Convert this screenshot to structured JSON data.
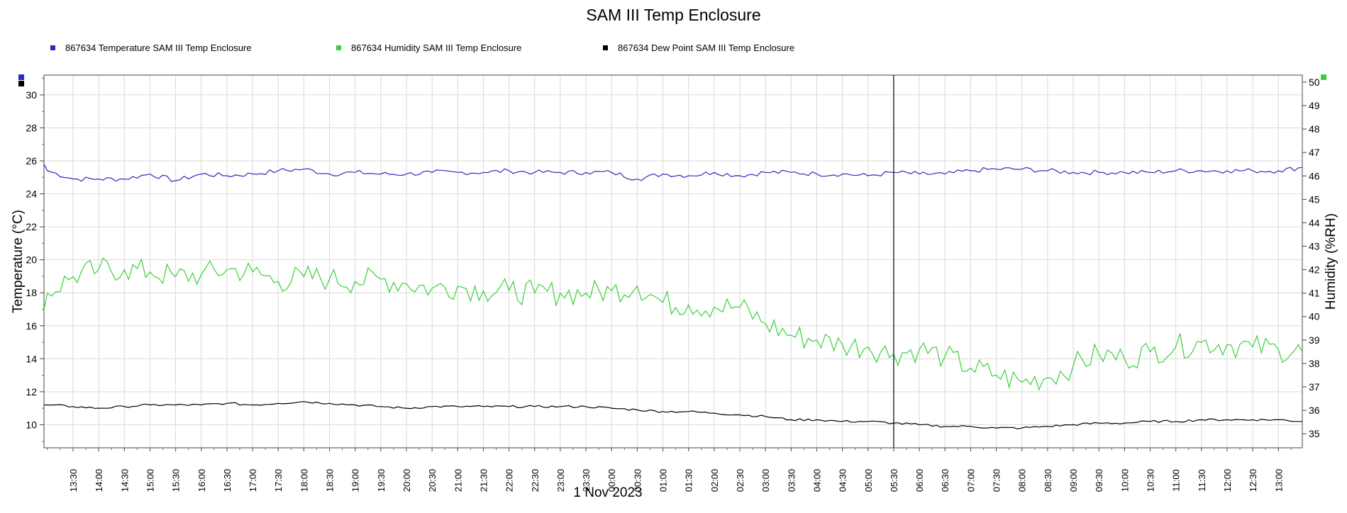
{
  "chart_data": {
    "type": "line",
    "title": "SAM III Temp Enclosure",
    "x_range": [
      "2023-10-31T12:56",
      "2023-11-01T13:28"
    ],
    "x_tick_labels": [
      "13:30",
      "14:00",
      "14:30",
      "15:00",
      "15:30",
      "16:00",
      "16:30",
      "17:00",
      "17:30",
      "18:00",
      "18:30",
      "19:00",
      "19:30",
      "20:00",
      "20:30",
      "21:00",
      "21:30",
      "22:00",
      "22:30",
      "23:00",
      "23:30",
      "00:00",
      "00:30",
      "01:00",
      "01:30",
      "02:00",
      "02:30",
      "03:00",
      "03:30",
      "04:00",
      "04:30",
      "05:00",
      "05:30",
      "06:00",
      "06:30",
      "07:00",
      "07:30",
      "08:00",
      "08:30",
      "09:00",
      "09:30",
      "10:00",
      "10:30",
      "11:00",
      "11:30",
      "12:00",
      "12:30",
      "13:00"
    ],
    "x_date_label": "1 Nov 2023",
    "cursor_time": "05:30",
    "y_left": {
      "label": "Temperature (°C)",
      "range": [
        8.6,
        31.2
      ],
      "ticks": [
        10,
        12,
        14,
        16,
        18,
        20,
        22,
        24,
        26,
        28,
        30
      ]
    },
    "y_right": {
      "label": "Humidity (%RH)",
      "range": [
        34.4,
        50.3
      ],
      "ticks": [
        35,
        36,
        37,
        38,
        39,
        40,
        41,
        42,
        43,
        44,
        45,
        46,
        47,
        48,
        49,
        50
      ]
    },
    "grid": true,
    "legend_position": "top",
    "series": [
      {
        "name": "867634  Temperature SAM III Temp Enclosure",
        "axis": "left",
        "color": "#2b2bbd",
        "points": [
          [
            "12:56",
            25.8
          ],
          [
            "13:00",
            25.4
          ],
          [
            "13:30",
            24.9
          ],
          [
            "14:00",
            24.9
          ],
          [
            "14:30",
            24.9
          ],
          [
            "15:00",
            25.2
          ],
          [
            "15:30",
            24.8
          ],
          [
            "16:00",
            25.2
          ],
          [
            "16:30",
            25.1
          ],
          [
            "17:00",
            25.2
          ],
          [
            "17:30",
            25.4
          ],
          [
            "18:00",
            25.5
          ],
          [
            "18:30",
            25.2
          ],
          [
            "19:00",
            25.3
          ],
          [
            "19:30",
            25.2
          ],
          [
            "20:00",
            25.2
          ],
          [
            "20:30",
            25.3
          ],
          [
            "21:00",
            25.3
          ],
          [
            "21:30",
            25.3
          ],
          [
            "22:00",
            25.4
          ],
          [
            "22:30",
            25.3
          ],
          [
            "23:00",
            25.3
          ],
          [
            "23:30",
            25.3
          ],
          [
            "00:00",
            25.3
          ],
          [
            "00:30",
            24.9
          ],
          [
            "01:00",
            25.2
          ],
          [
            "01:30",
            25.1
          ],
          [
            "02:00",
            25.3
          ],
          [
            "02:30",
            25.1
          ],
          [
            "03:00",
            25.3
          ],
          [
            "03:30",
            25.3
          ],
          [
            "04:00",
            25.2
          ],
          [
            "04:30",
            25.2
          ],
          [
            "05:00",
            25.1
          ],
          [
            "05:30",
            25.3
          ],
          [
            "06:00",
            25.2
          ],
          [
            "06:30",
            25.2
          ],
          [
            "07:00",
            25.4
          ],
          [
            "07:30",
            25.5
          ],
          [
            "08:00",
            25.5
          ],
          [
            "08:30",
            25.4
          ],
          [
            "09:00",
            25.3
          ],
          [
            "09:30",
            25.3
          ],
          [
            "10:00",
            25.3
          ],
          [
            "10:30",
            25.3
          ],
          [
            "11:00",
            25.4
          ],
          [
            "11:30",
            25.4
          ],
          [
            "12:00",
            25.4
          ],
          [
            "12:30",
            25.4
          ],
          [
            "13:00",
            25.4
          ],
          [
            "13:28",
            25.6
          ]
        ]
      },
      {
        "name": "867634  Humidity SAM III Temp Enclosure",
        "axis": "right",
        "color": "#3ccf3c",
        "points": [
          [
            "12:56",
            40.3
          ],
          [
            "13:00",
            41.0
          ],
          [
            "13:30",
            41.7
          ],
          [
            "14:00",
            42.0
          ],
          [
            "14:30",
            42.0
          ],
          [
            "15:00",
            41.9
          ],
          [
            "15:30",
            41.7
          ],
          [
            "16:00",
            41.8
          ],
          [
            "16:30",
            42.0
          ],
          [
            "17:00",
            41.9
          ],
          [
            "17:30",
            41.5
          ],
          [
            "18:00",
            41.7
          ],
          [
            "18:30",
            41.6
          ],
          [
            "19:00",
            41.5
          ],
          [
            "19:30",
            41.6
          ],
          [
            "20:00",
            41.4
          ],
          [
            "20:30",
            41.2
          ],
          [
            "21:00",
            41.3
          ],
          [
            "21:30",
            41.1
          ],
          [
            "22:00",
            41.1
          ],
          [
            "22:30",
            41.0
          ],
          [
            "23:00",
            41.0
          ],
          [
            "23:30",
            41.0
          ],
          [
            "00:00",
            41.1
          ],
          [
            "00:30",
            41.3
          ],
          [
            "01:00",
            40.6
          ],
          [
            "01:30",
            40.5
          ],
          [
            "02:00",
            40.4
          ],
          [
            "02:30",
            40.4
          ],
          [
            "03:00",
            39.7
          ],
          [
            "03:30",
            39.2
          ],
          [
            "04:00",
            39.0
          ],
          [
            "04:30",
            38.8
          ],
          [
            "05:00",
            38.7
          ],
          [
            "05:30",
            38.4
          ],
          [
            "06:00",
            38.6
          ],
          [
            "06:30",
            38.3
          ],
          [
            "07:00",
            37.8
          ],
          [
            "07:30",
            37.5
          ],
          [
            "08:00",
            37.2
          ],
          [
            "08:30",
            37.4
          ],
          [
            "09:00",
            37.9
          ],
          [
            "09:30",
            38.4
          ],
          [
            "10:00",
            38.2
          ],
          [
            "10:30",
            38.5
          ],
          [
            "11:00",
            38.7
          ],
          [
            "11:30",
            38.9
          ],
          [
            "12:00",
            38.8
          ],
          [
            "12:30",
            38.7
          ],
          [
            "13:00",
            38.6
          ],
          [
            "13:28",
            38.5
          ]
        ]
      },
      {
        "name": "867634  Dew Point SAM III Temp Enclosure",
        "axis": "left",
        "color": "#000000",
        "points": [
          [
            "12:56",
            11.2
          ],
          [
            "13:00",
            11.2
          ],
          [
            "13:30",
            11.1
          ],
          [
            "14:00",
            11.0
          ],
          [
            "14:30",
            11.1
          ],
          [
            "15:00",
            11.2
          ],
          [
            "15:30",
            11.2
          ],
          [
            "16:00",
            11.2
          ],
          [
            "16:30",
            11.3
          ],
          [
            "17:00",
            11.2
          ],
          [
            "17:30",
            11.3
          ],
          [
            "18:00",
            11.4
          ],
          [
            "18:30",
            11.3
          ],
          [
            "19:00",
            11.2
          ],
          [
            "19:30",
            11.1
          ],
          [
            "20:00",
            11.0
          ],
          [
            "20:30",
            11.1
          ],
          [
            "21:00",
            11.1
          ],
          [
            "21:30",
            11.1
          ],
          [
            "22:00",
            11.1
          ],
          [
            "22:30",
            11.1
          ],
          [
            "23:00",
            11.1
          ],
          [
            "23:30",
            11.1
          ],
          [
            "00:00",
            11.0
          ],
          [
            "00:30",
            10.9
          ],
          [
            "01:00",
            10.8
          ],
          [
            "01:30",
            10.8
          ],
          [
            "02:00",
            10.7
          ],
          [
            "02:30",
            10.6
          ],
          [
            "03:00",
            10.5
          ],
          [
            "03:30",
            10.3
          ],
          [
            "04:00",
            10.3
          ],
          [
            "04:30",
            10.2
          ],
          [
            "05:00",
            10.2
          ],
          [
            "05:30",
            10.1
          ],
          [
            "06:00",
            10.0
          ],
          [
            "06:30",
            9.9
          ],
          [
            "07:00",
            9.9
          ],
          [
            "07:30",
            9.8
          ],
          [
            "08:00",
            9.8
          ],
          [
            "08:30",
            9.9
          ],
          [
            "09:00",
            10.0
          ],
          [
            "09:30",
            10.1
          ],
          [
            "10:00",
            10.1
          ],
          [
            "10:30",
            10.2
          ],
          [
            "11:00",
            10.2
          ],
          [
            "11:30",
            10.3
          ],
          [
            "12:00",
            10.3
          ],
          [
            "12:30",
            10.3
          ],
          [
            "13:00",
            10.3
          ],
          [
            "13:28",
            10.2
          ]
        ]
      }
    ]
  },
  "legend": [
    {
      "label": "867634  Temperature SAM III Temp Enclosure",
      "color": "#2b2bbd"
    },
    {
      "label": "867634  Humidity SAM III Temp Enclosure",
      "color": "#3ccf3c"
    },
    {
      "label": "867634  Dew Point SAM III Temp Enclosure",
      "color": "#000000"
    }
  ]
}
